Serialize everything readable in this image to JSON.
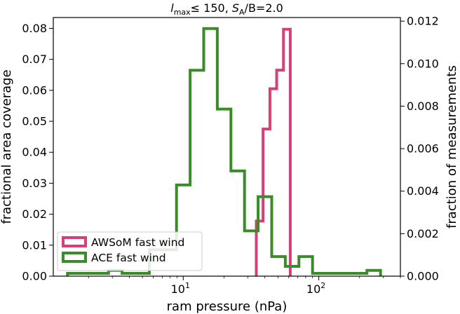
{
  "chart_data": {
    "type": "histogram",
    "title_parts": {
      "l": "l",
      "sub_max": "max",
      "le": "≤ 150, ",
      "s": "S",
      "sub_a": "A",
      "rest": "/B=2.0"
    },
    "xlabel": "ram pressure (nPa)",
    "ylabel_left": "fractional area coverage",
    "ylabel_right": "fraction of measurements",
    "x_scale": "log",
    "xlim": [
      1.1,
      400
    ],
    "x_major_ticks": [
      {
        "value": 10,
        "base": "10",
        "exp": "1"
      },
      {
        "value": 100,
        "base": "10",
        "exp": "2"
      }
    ],
    "ylim_left": [
      0,
      0.0835
    ],
    "yticks_left": [
      "0.00",
      "0.01",
      "0.02",
      "0.03",
      "0.04",
      "0.05",
      "0.06",
      "0.07",
      "0.08"
    ],
    "ylim_right": [
      0,
      0.01217
    ],
    "yticks_right": [
      "0.000",
      "0.002",
      "0.004",
      "0.006",
      "0.008",
      "0.010",
      "0.012"
    ],
    "legend_position": "lower-left",
    "series": [
      {
        "name": "AWSoM fast wind",
        "color": "#d6407a",
        "axis": "left",
        "edges": [
          34.6,
          38.8,
          43.6,
          48.9,
          54.9,
          61.6
        ],
        "values": [
          0.0178,
          0.0475,
          0.0605,
          0.0665,
          0.0797
        ]
      },
      {
        "name": "ACE fast wind",
        "color": "#3a8c2a",
        "axis": "right",
        "edges": [
          1.4,
          1.77,
          2.23,
          2.81,
          3.54,
          4.46,
          5.62,
          7.08,
          8.92,
          11.24,
          14.16,
          17.84,
          22.48,
          28.32,
          35.68,
          44.96,
          56.64,
          71.36,
          89.92,
          113.28,
          142.72,
          179.84,
          226.56,
          285.44
        ],
        "values": [
          0.00013,
          0.00013,
          0.00013,
          0.00027,
          0.00013,
          0.00013,
          0.00124,
          0.00124,
          0.00429,
          0.00969,
          0.01165,
          0.00786,
          0.00495,
          0.00213,
          0.00374,
          0.00092,
          0.00046,
          0.00092,
          0.00013,
          0.00013,
          0.00013,
          0.00013,
          0.00027
        ]
      }
    ]
  }
}
